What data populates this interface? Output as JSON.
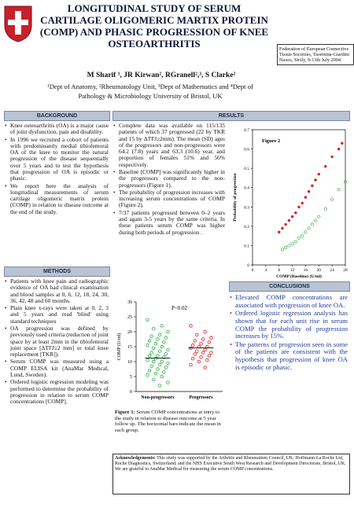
{
  "header": {
    "title": "LONGITUDINAL STUDY OF SERUM CARTILAGE OLIGOMERIC MARTIX PROTEIN (COMP) AND PHASIC PROGRESSION OF KNEE OSTEOARTHRITIS",
    "authors": "M Sharif ¹, JR Kirwan², RGranell²,³, S Clarke²",
    "affiliations": "¹Dept of Anatomy, ²Rheumatology Unit, ³Dept of Mathematics and ⁴Dept of Pathology & Microbiology University of Bristol, UK",
    "conference": "Federation of European Connective Tissue Societies, Taormina-Giardini Naxos, Sicily, 9-13th July 2004."
  },
  "background": {
    "heading": "BACKGROUND",
    "bullets": [
      "Knee osteoarthritis (OA) is a major cause of joint dysfunction, pain and disability.",
      "In 1996 we recruited a cohort of patients with predominantly medial tibiofemoral OA of the knee to monitor the natural progression of the disease sequentially over 5 years and to test the hypothesis that progression of OA is episodic or phasic.",
      "We report here the analysis of longitudinal measurements of serum cartilage oligomeric matrix protein (COMP) in relation to disease outcome at the end of the study."
    ]
  },
  "methods": {
    "heading": "METHODS",
    "bullets": [
      "Patients with knee pain and radiographic evidence of OA had clinical examination and blood samples at 0, 6, 12, 18, 24, 30, 36, 42, 48 and 60 months.",
      "Plain knee x-rays were taken at 0, 2, 3 and 5 years and read 'blind' using standard techniques",
      "OA progression was defined by previously used criteria (reduction of joint space by at least 2mm in the tibiofemoral joint space [ΔTFJ≥2 mm] or total knee replacement [TKR]).",
      "Serum COMP was measured using a COMP ELISA kit (AnaMar Medical, Lund, Sweden).",
      "Ordered logistic regression modeling was performed to determine the probability of progression in relation to serum COMP concentrations [COMP]."
    ]
  },
  "results": {
    "heading": "RESULTS",
    "bullets": [
      "Complete data was available on 115/135 patients of which 37 progressed (22 by TKR and 15 by ΔTFJ≥2mm). The mean (SD) ages of the progressors and non-progressors were 64.2 (7.8) years and 63.3 (10.6) year, and proportion of females 51% and 56% respectively.",
      "Baseline [COMP] was significantly higher in the progressors compared to the non-progressors (Figure 1).",
      "The probability of progression increases with increasing serum concentrations of COMP (Figure 2).",
      "7/37 patients progressed between 0–2 years and again 3-5 years by the same criteria. In these patients serum COMP was higher during both periods of progression ."
    ]
  },
  "conclusions": {
    "heading": "CONCLUSIONS",
    "bullets": [
      "Elevated COMP concentrations are associated with progression of knee OA.",
      "Ordered logistic regression analysis has shown that for each unit rise in serum COMP the probability of progression increases by 15%.",
      "The patterns of progression seen in some of the patients are consistent with the hypothesis that progression of knee OA is episodic or phasic."
    ]
  },
  "figure1": {
    "annotation": "P<0.02",
    "ylabel": "COMP (U/ml)",
    "categories": [
      "Non-progressors",
      "Progressors"
    ],
    "ylim": [
      0,
      30
    ],
    "yticks": [
      0,
      5,
      10,
      15,
      20,
      25,
      30
    ],
    "series": [
      {
        "color": "#2ea84a",
        "values": [
          24,
          22,
          21,
          20,
          19,
          18.5,
          18,
          17.5,
          17,
          16.5,
          16,
          15.5,
          15,
          14.5,
          14,
          13.5,
          13,
          12.5,
          12,
          12,
          11.5,
          11,
          10.5,
          10,
          10,
          9.5,
          9,
          8.5,
          8,
          7.5,
          7,
          6.5,
          6,
          5.5,
          5,
          4,
          3,
          2
        ]
      },
      {
        "color": "#d81e1e",
        "values": [
          22,
          20,
          19,
          18,
          17.5,
          17,
          16.5,
          16,
          15.5,
          15,
          15,
          14.5,
          14,
          13.5,
          13,
          13,
          12.5,
          12,
          11.5,
          11,
          10.5,
          10,
          9,
          8
        ]
      }
    ],
    "means": [
      11.2,
      14.6
    ],
    "caption_label": "Figure 1:",
    "caption": "Serum COMP concentrations at entry to the study in relation to disease outcome at 5 year follow up. The horizontal bars indicate the mean in each group."
  },
  "figure2": {
    "title": "Figure 2",
    "xlabel": "COMP (Baseline) (U/ml)",
    "ylabel": "Probability of progression",
    "xlim": [
      0,
      28
    ],
    "ylim": [
      0,
      0.7
    ],
    "xticks": [
      0,
      4,
      8,
      12,
      16,
      20,
      24,
      28
    ],
    "yticks": [
      0,
      0.1,
      0.2,
      0.3,
      0.4,
      0.5,
      0.6,
      0.7
    ],
    "series": [
      {
        "color": "#d81e1e",
        "x": [
          8,
          9,
          10,
          11,
          12,
          13,
          14,
          15,
          16,
          17,
          18,
          19,
          20,
          22,
          24,
          26,
          27
        ],
        "values": [
          0.17,
          0.19,
          0.21,
          0.23,
          0.25,
          0.27,
          0.3,
          0.32,
          0.35,
          0.38,
          0.41,
          0.44,
          0.47,
          0.51,
          0.56,
          0.6,
          0.63
        ]
      },
      {
        "color": "#5cb85c",
        "x": [
          9,
          10,
          11,
          12,
          13,
          14,
          15,
          16,
          17,
          18,
          19,
          20,
          22,
          24,
          26,
          28
        ],
        "values": [
          0.08,
          0.09,
          0.1,
          0.11,
          0.12,
          0.14,
          0.15,
          0.17,
          0.19,
          0.21,
          0.23,
          0.25,
          0.29,
          0.34,
          0.39,
          0.43
        ]
      }
    ]
  },
  "acknowledgements": {
    "label": "Acknowledgements:",
    "text": "This study was supported by the Arthritis and Rheumatism Council, UK; Hoffmann-La Roche Ltd, Roche Diagnostics, Switzerland; and the NHS Executive South West Research and Development Directorate, Bristol, UK. We are grateful to AnaMar Medical for measuring the serum COMP concentrations."
  }
}
